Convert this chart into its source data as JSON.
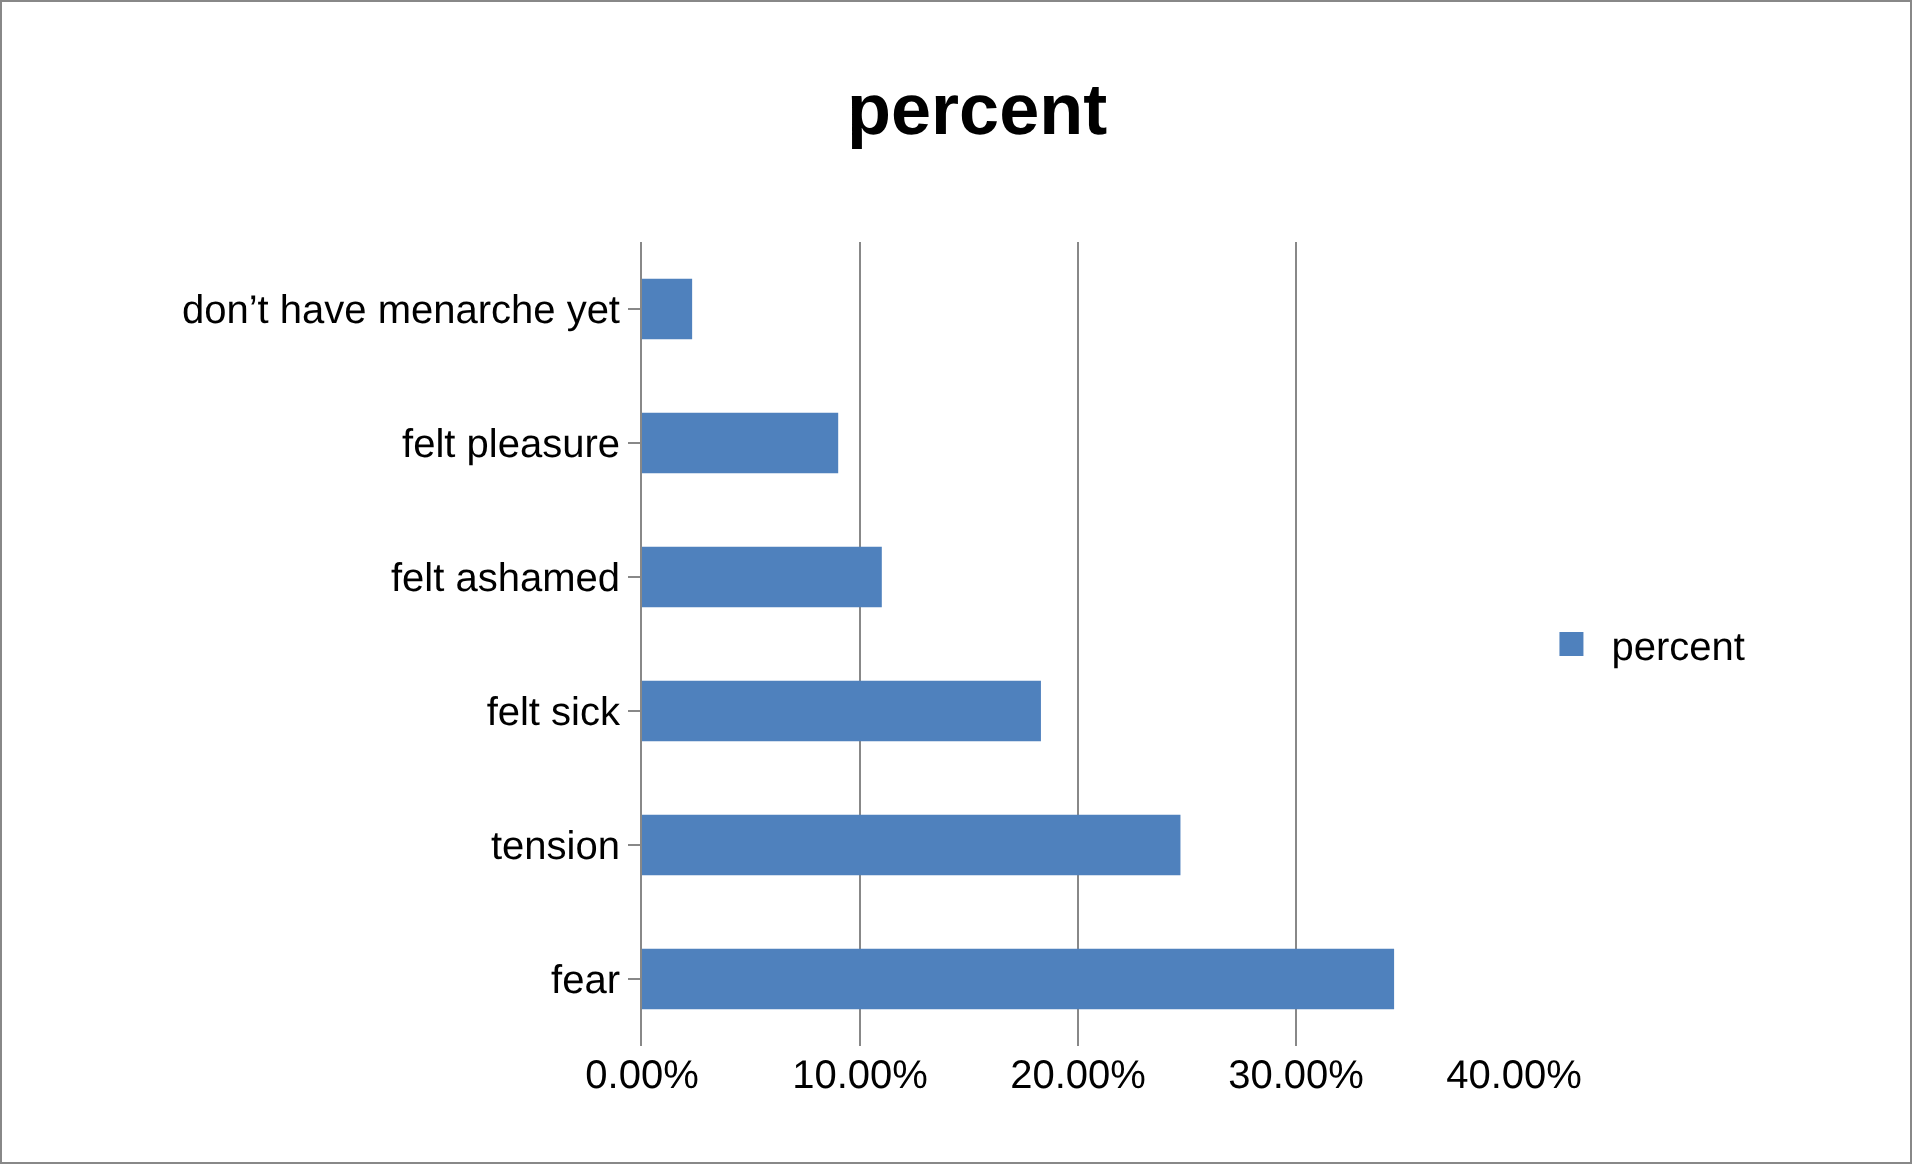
{
  "chart_data": {
    "type": "bar",
    "orientation": "horizontal",
    "title": "percent",
    "categories": [
      "don’t have menarche yet",
      "felt pleasure",
      "felt ashamed",
      "felt sick",
      "tension",
      "fear"
    ],
    "series": [
      {
        "name": "percent",
        "color": "#4f81bd",
        "values": [
          2.3,
          9.0,
          11.0,
          18.3,
          24.7,
          34.5
        ]
      }
    ],
    "xlim": [
      0,
      40
    ],
    "xticks": [
      {
        "value": 0,
        "label": "0.00%"
      },
      {
        "value": 10,
        "label": "10.00%"
      },
      {
        "value": 20,
        "label": "20.00%"
      },
      {
        "value": 30,
        "label": "30.00%"
      },
      {
        "value": 40,
        "label": "40.00%"
      }
    ],
    "grid": "x",
    "legend": "right"
  }
}
